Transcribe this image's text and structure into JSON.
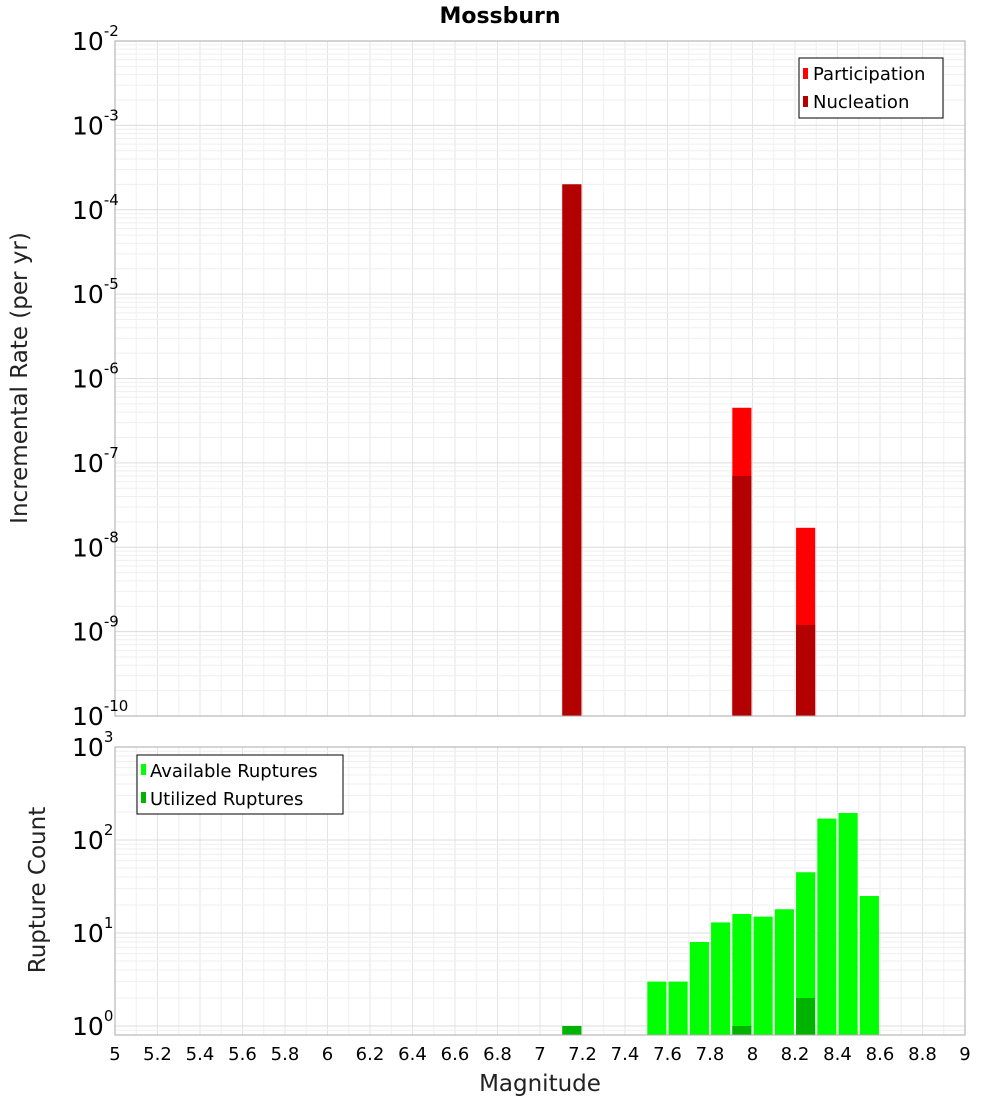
{
  "chart_data": [
    {
      "type": "bar",
      "title": "Mossburn",
      "ylabel": "Incremental Rate (per yr)",
      "xlabel": "",
      "yscale": "log",
      "xlim": [
        5,
        9
      ],
      "ylim": [
        1e-10,
        0.01
      ],
      "grid": true,
      "legend_position": "top-right",
      "bar_width": 0.09,
      "y_tick_exponents": [
        -10,
        -9,
        -8,
        -7,
        -6,
        -5,
        -4,
        -3,
        -2
      ],
      "series": [
        {
          "name": "Participation",
          "color": "#ff0000",
          "points": [
            {
              "x": 7.15,
              "y": 0.0002
            },
            {
              "x": 7.95,
              "y": 4.5e-07
            },
            {
              "x": 8.25,
              "y": 1.7e-08
            }
          ]
        },
        {
          "name": "Nucleation",
          "color": "#b30000",
          "points": [
            {
              "x": 7.15,
              "y": 0.0002
            },
            {
              "x": 7.95,
              "y": 7e-08
            },
            {
              "x": 8.25,
              "y": 1.2e-09
            }
          ]
        }
      ]
    },
    {
      "type": "bar",
      "title": "",
      "ylabel": "Rupture Count",
      "xlabel": "Magnitude",
      "yscale": "log",
      "xlim": [
        5,
        9
      ],
      "ylim": [
        0.8,
        1000
      ],
      "grid": true,
      "legend_position": "top-left",
      "bar_width": 0.09,
      "y_tick_exponents": [
        0,
        1,
        2,
        3
      ],
      "x_ticks": [
        "5",
        "5.2",
        "5.4",
        "5.6",
        "5.8",
        "6",
        "6.2",
        "6.4",
        "6.6",
        "6.8",
        "7",
        "7.2",
        "7.4",
        "7.6",
        "7.8",
        "8",
        "8.2",
        "8.4",
        "8.6",
        "8.8",
        "9"
      ],
      "series": [
        {
          "name": "Available Ruptures",
          "color": "#00ff00",
          "points": [
            {
              "x": 7.15,
              "y": 1
            },
            {
              "x": 7.55,
              "y": 3
            },
            {
              "x": 7.65,
              "y": 3
            },
            {
              "x": 7.75,
              "y": 8
            },
            {
              "x": 7.85,
              "y": 13
            },
            {
              "x": 7.95,
              "y": 16
            },
            {
              "x": 8.05,
              "y": 15
            },
            {
              "x": 8.15,
              "y": 18
            },
            {
              "x": 8.25,
              "y": 45
            },
            {
              "x": 8.35,
              "y": 170
            },
            {
              "x": 8.45,
              "y": 195
            },
            {
              "x": 8.55,
              "y": 25
            }
          ]
        },
        {
          "name": "Utilized Ruptures",
          "color": "#00b300",
          "points": [
            {
              "x": 7.15,
              "y": 1
            },
            {
              "x": 7.95,
              "y": 1
            },
            {
              "x": 8.25,
              "y": 2
            }
          ]
        }
      ]
    }
  ]
}
